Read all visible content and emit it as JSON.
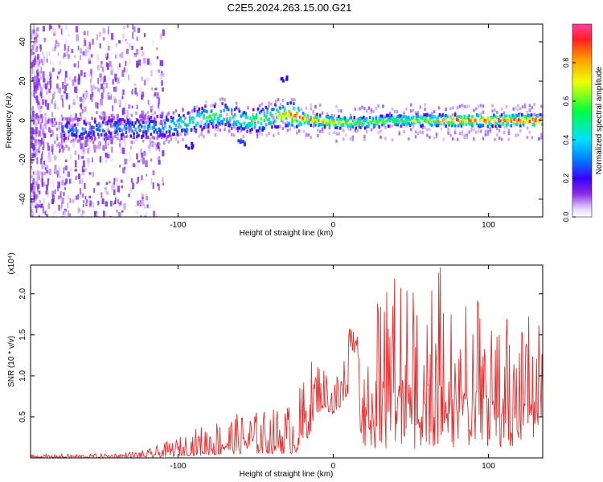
{
  "title": "C2E5.2024.263.15.00.G21",
  "chart_data": [
    {
      "type": "heatmap",
      "xlabel": "Height of straight line (km)",
      "ylabel": "Frequency (Hz)",
      "colorbar_label": "Normalized spectral amplitude",
      "xlim": [
        -195,
        135
      ],
      "ylim": [
        -49,
        49
      ],
      "xticks": [
        -100,
        0,
        100
      ],
      "yticks": [
        -40,
        -20,
        0,
        20,
        40
      ],
      "colorbar_ticks": [
        0.0,
        0.2,
        0.4,
        0.6,
        0.8
      ],
      "colorbar_range": [
        0,
        1
      ],
      "ridge": {
        "x": [
          -170,
          -150,
          -130,
          -110,
          -95,
          -80,
          -70,
          -60,
          -50,
          -40,
          -30,
          -25,
          -20,
          -10,
          0,
          20,
          40,
          60,
          80,
          100,
          120,
          135
        ],
        "center_hz": [
          -5,
          -4,
          -4,
          -3,
          -1,
          2,
          3,
          0,
          0,
          2,
          3,
          3,
          1,
          0,
          -1,
          -1,
          0,
          0,
          0,
          0,
          0,
          0
        ],
        "peak_amplitude": [
          0.35,
          0.35,
          0.38,
          0.42,
          0.55,
          0.6,
          0.6,
          0.55,
          0.65,
          0.65,
          0.85,
          0.9,
          0.95,
          0.9,
          0.8,
          0.7,
          0.65,
          0.75,
          0.95,
          1.0,
          1.0,
          1.0
        ]
      },
      "features": [
        {
          "x": -33,
          "y": 21,
          "amplitude": 0.2
        },
        {
          "x": -60,
          "y": -10,
          "amplitude": 0.25
        },
        {
          "x": -93,
          "y": -13,
          "amplitude": 0.2
        }
      ]
    },
    {
      "type": "line",
      "xlabel": "Height of straight line (km)",
      "ylabel": "SNR (10 * v/v)",
      "y_multiplier": "(x10⁴)",
      "xlim": [
        -195,
        135
      ],
      "ylim": [
        0,
        2.35
      ],
      "xticks": [
        -100,
        0,
        100
      ],
      "yticks": [
        0.5,
        1.0,
        1.5,
        2.0
      ],
      "color": "#ee2a2a",
      "envelope": {
        "x": [
          -195,
          -160,
          -140,
          -120,
          -100,
          -80,
          -60,
          -40,
          -25,
          -20,
          -15,
          -10,
          -5,
          0,
          5,
          10,
          15,
          20,
          30,
          40,
          50,
          60,
          70,
          80,
          90,
          100,
          110,
          120,
          130,
          135
        ],
        "min": [
          0.0,
          0.0,
          0.0,
          0.0,
          0.02,
          0.03,
          0.05,
          0.05,
          0.05,
          0.1,
          0.3,
          0.55,
          0.6,
          0.5,
          0.55,
          0.8,
          0.6,
          0.1,
          0.1,
          0.1,
          0.1,
          0.1,
          0.1,
          0.1,
          0.1,
          0.1,
          0.1,
          0.1,
          0.1,
          0.4
        ],
        "max": [
          0.04,
          0.05,
          0.06,
          0.1,
          0.25,
          0.45,
          0.55,
          0.6,
          0.7,
          0.95,
          1.2,
          1.25,
          1.1,
          1.0,
          1.2,
          1.6,
          1.5,
          1.35,
          2.0,
          2.3,
          2.25,
          2.2,
          2.35,
          2.05,
          2.0,
          1.9,
          1.75,
          1.55,
          1.9,
          1.7
        ]
      }
    }
  ]
}
